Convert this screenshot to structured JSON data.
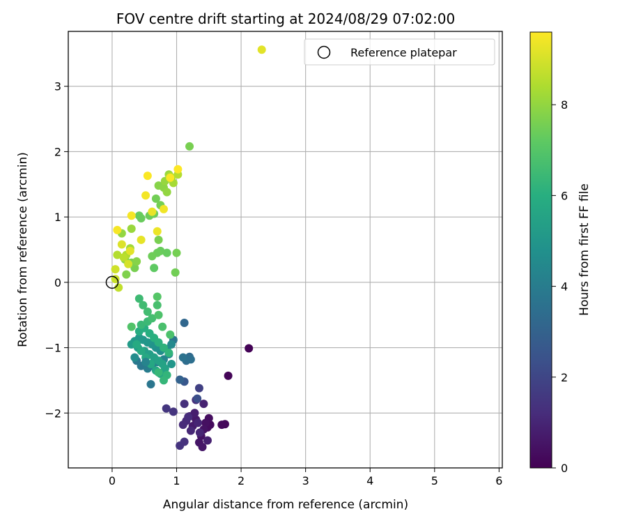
{
  "chart_data": {
    "type": "scatter",
    "title": "FOV centre drift starting at 2024/08/29 07:02:00",
    "xlabel": "Angular distance from reference (arcmin)",
    "ylabel": "Rotation from reference (arcmin)",
    "xlim": [
      -0.68,
      6.05
    ],
    "ylim": [
      -2.84,
      3.84
    ],
    "xticks": [
      0,
      1,
      2,
      3,
      4,
      5,
      6
    ],
    "yticks": [
      -2,
      -1,
      0,
      1,
      2,
      3
    ],
    "grid": true,
    "colormap": "viridis",
    "colorbar": {
      "label": "Hours from first FF file",
      "range": [
        0,
        9.6
      ],
      "ticks": [
        0,
        2,
        4,
        6,
        8
      ]
    },
    "legend": {
      "position": "top-right",
      "entries": [
        "Reference platepar"
      ]
    },
    "reference_point": {
      "x": 0,
      "y": 0,
      "label": "Reference platepar"
    },
    "series": [
      {
        "points": [
          [
            2.12,
            -1.01,
            0.05
          ],
          [
            1.8,
            -1.43,
            0.1
          ],
          [
            1.75,
            -2.17,
            0.15
          ],
          [
            1.7,
            -2.18,
            0.2
          ],
          [
            1.52,
            -2.18,
            0.25
          ],
          [
            1.48,
            -2.22,
            0.3
          ],
          [
            1.5,
            -2.08,
            0.35
          ],
          [
            1.45,
            -2.15,
            0.4
          ],
          [
            1.42,
            -2.25,
            0.45
          ],
          [
            1.38,
            -2.35,
            0.5
          ],
          [
            1.35,
            -2.45,
            0.55
          ],
          [
            1.4,
            -2.52,
            0.6
          ],
          [
            1.3,
            -2.1,
            0.65
          ],
          [
            1.25,
            -2.2,
            0.7
          ],
          [
            1.2,
            -2.05,
            0.75
          ],
          [
            1.28,
            -2.0,
            0.8
          ],
          [
            1.48,
            -2.42,
            0.85
          ],
          [
            1.42,
            -1.86,
            0.9
          ],
          [
            1.33,
            -2.15,
            0.95
          ],
          [
            1.36,
            -2.3,
            1.0
          ],
          [
            1.22,
            -2.27,
            1.05
          ],
          [
            1.15,
            -2.12,
            1.1
          ],
          [
            1.1,
            -2.18,
            1.15
          ],
          [
            1.18,
            -2.06,
            1.2
          ],
          [
            1.3,
            -1.8,
            1.25
          ],
          [
            1.12,
            -1.86,
            1.3
          ],
          [
            1.12,
            -2.44,
            1.35
          ],
          [
            1.05,
            -2.5,
            1.4
          ],
          [
            0.95,
            -1.98,
            1.45
          ],
          [
            0.84,
            -1.93,
            1.5
          ],
          [
            1.35,
            -1.62,
            1.8
          ],
          [
            1.32,
            -1.78,
            2.3
          ],
          [
            1.12,
            -1.52,
            2.6
          ],
          [
            1.05,
            -1.49,
            3.0
          ],
          [
            1.12,
            -0.62,
            3.2
          ],
          [
            1.2,
            -1.14,
            3.3
          ],
          [
            1.15,
            -1.2,
            3.4
          ],
          [
            1.22,
            -1.18,
            3.5
          ],
          [
            1.1,
            -1.15,
            3.6
          ],
          [
            0.95,
            -0.88,
            3.7
          ],
          [
            0.6,
            -1.56,
            3.75
          ],
          [
            0.38,
            -1.2,
            3.8
          ],
          [
            0.45,
            -1.28,
            3.85
          ],
          [
            0.55,
            -1.32,
            4.0
          ],
          [
            0.62,
            -1.28,
            4.1
          ],
          [
            0.7,
            -1.22,
            4.2
          ],
          [
            0.8,
            -1.18,
            4.3
          ],
          [
            0.88,
            -1.1,
            4.4
          ],
          [
            0.92,
            -0.95,
            4.5
          ],
          [
            0.85,
            -1.02,
            4.6
          ],
          [
            0.75,
            -1.05,
            4.7
          ],
          [
            0.68,
            -1.0,
            4.8
          ],
          [
            0.62,
            -0.95,
            4.9
          ],
          [
            0.55,
            -0.92,
            5.0
          ],
          [
            0.48,
            -0.88,
            5.05
          ],
          [
            0.42,
            -0.85,
            5.1
          ],
          [
            0.35,
            -0.9,
            5.15
          ],
          [
            0.3,
            -0.95,
            5.2
          ],
          [
            0.4,
            -1.0,
            5.25
          ],
          [
            0.5,
            -1.05,
            5.3
          ],
          [
            0.58,
            -1.1,
            5.35
          ],
          [
            0.65,
            -1.15,
            5.4
          ],
          [
            0.72,
            -1.2,
            5.45
          ],
          [
            0.78,
            -1.25,
            5.5
          ],
          [
            0.82,
            -1.32,
            5.55
          ],
          [
            0.75,
            -1.4,
            5.6
          ],
          [
            0.68,
            -1.35,
            5.65
          ],
          [
            0.6,
            -1.25,
            5.7
          ],
          [
            0.52,
            -1.15,
            5.75
          ],
          [
            0.45,
            -1.05,
            5.8
          ],
          [
            0.38,
            -0.95,
            5.85
          ],
          [
            0.42,
            -0.75,
            5.9
          ],
          [
            0.5,
            -0.7,
            5.95
          ],
          [
            0.58,
            -0.78,
            6.0
          ],
          [
            0.65,
            -0.85,
            6.05
          ],
          [
            0.72,
            -0.92,
            6.1
          ],
          [
            0.8,
            -1.0,
            6.15
          ],
          [
            0.88,
            -1.08,
            6.2
          ],
          [
            0.85,
            -1.42,
            6.25
          ],
          [
            0.8,
            -1.5,
            6.3
          ],
          [
            0.72,
            -1.38,
            6.35
          ],
          [
            0.45,
            -0.65,
            6.4
          ],
          [
            0.55,
            -0.6,
            6.45
          ],
          [
            0.42,
            -0.25,
            6.5
          ],
          [
            0.48,
            -0.35,
            6.55
          ],
          [
            0.55,
            -0.45,
            6.6
          ],
          [
            0.62,
            -0.55,
            6.65
          ],
          [
            0.7,
            -0.35,
            6.7
          ],
          [
            0.78,
            -0.68,
            6.75
          ],
          [
            0.9,
            -0.8,
            6.8
          ],
          [
            0.72,
            -0.5,
            6.85
          ],
          [
            0.3,
            -0.68,
            6.9
          ],
          [
            0.92,
            -1.25,
            5.0
          ],
          [
            0.35,
            -1.15,
            4.6
          ],
          [
            0.52,
            -1.22,
            4.3
          ],
          [
            0.7,
            -0.22,
            7.0
          ],
          [
            0.65,
            0.22,
            7.2
          ],
          [
            0.85,
            0.45,
            7.3
          ],
          [
            0.75,
            0.48,
            7.35
          ],
          [
            0.7,
            0.45,
            7.4
          ],
          [
            0.62,
            0.4,
            7.45
          ],
          [
            0.98,
            0.15,
            7.5
          ],
          [
            1.0,
            0.45,
            7.55
          ],
          [
            0.35,
            0.22,
            7.6
          ],
          [
            0.3,
            0.3,
            7.65
          ],
          [
            0.22,
            0.12,
            7.7
          ],
          [
            0.2,
            0.35,
            7.75
          ],
          [
            0.38,
            0.32,
            7.8
          ],
          [
            0.42,
            1.02,
            7.3
          ],
          [
            0.45,
            0.98,
            7.35
          ],
          [
            0.58,
            1.02,
            7.4
          ],
          [
            0.65,
            1.05,
            7.45
          ],
          [
            0.68,
            1.28,
            7.5
          ],
          [
            0.75,
            1.18,
            7.55
          ],
          [
            0.72,
            0.65,
            7.6
          ],
          [
            1.2,
            2.08,
            7.6
          ],
          [
            0.72,
            1.48,
            7.8
          ],
          [
            0.8,
            1.45,
            7.9
          ],
          [
            0.85,
            1.38,
            8.0
          ],
          [
            0.82,
            1.55,
            8.05
          ],
          [
            0.88,
            1.65,
            8.1
          ],
          [
            0.92,
            1.58,
            8.2
          ],
          [
            0.95,
            1.52,
            8.3
          ],
          [
            0.9,
            1.62,
            8.4
          ],
          [
            1.02,
            1.65,
            8.5
          ],
          [
            0.15,
            0.75,
            8.0
          ],
          [
            0.3,
            0.82,
            8.1
          ],
          [
            0.28,
            0.52,
            8.2
          ],
          [
            0.22,
            0.42,
            8.4
          ],
          [
            0.08,
            0.42,
            8.5
          ],
          [
            0.18,
            0.38,
            8.6
          ],
          [
            0.1,
            -0.08,
            8.7
          ],
          [
            0.05,
            0.05,
            8.8
          ],
          [
            0.05,
            0.2,
            8.9
          ],
          [
            0.25,
            0.28,
            9.0
          ],
          [
            0.15,
            0.58,
            9.1
          ],
          [
            0.28,
            0.48,
            9.2
          ],
          [
            0.45,
            0.65,
            9.25
          ],
          [
            0.62,
            1.08,
            9.3
          ],
          [
            0.7,
            0.78,
            9.35
          ],
          [
            0.8,
            1.12,
            9.4
          ],
          [
            0.52,
            1.33,
            9.45
          ],
          [
            0.3,
            1.02,
            9.5
          ],
          [
            0.08,
            0.8,
            9.5
          ],
          [
            0.55,
            1.63,
            9.55
          ],
          [
            0.9,
            1.6,
            9.55
          ],
          [
            1.02,
            1.73,
            9.6
          ],
          [
            2.32,
            3.56,
            9.2
          ]
        ]
      }
    ]
  }
}
